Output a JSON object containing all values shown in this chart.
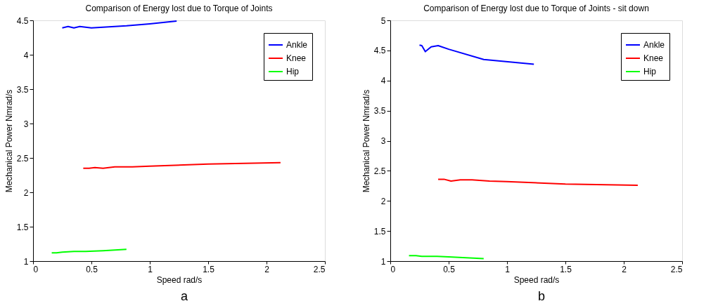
{
  "chart_data": [
    {
      "type": "line",
      "title": "Comparison of Energy lost due to Torque of Joints",
      "xlabel": "Speed rad/s",
      "ylabel": "Mechanical Power Nmrad/s",
      "annotations": [
        "a"
      ],
      "xlim": [
        0,
        2.5
      ],
      "xticks": [
        0,
        0.5,
        1,
        1.5,
        2,
        2.5
      ],
      "ylim": [
        1,
        4.5
      ],
      "yticks": [
        1,
        1.5,
        2,
        2.5,
        3,
        3.5,
        4,
        4.5
      ],
      "legend": "top right",
      "grid": false,
      "marker": "none",
      "line_style": "solid",
      "series": [
        {
          "name": "Ankle",
          "color": "#0000ff",
          "x": [
            0.25,
            0.3,
            0.35,
            0.4,
            0.5,
            0.6,
            0.8,
            1.0,
            1.23
          ],
          "values": [
            4.39,
            4.41,
            4.39,
            4.41,
            4.39,
            4.4,
            4.42,
            4.45,
            4.49
          ]
        },
        {
          "name": "Knee",
          "color": "#ff0000",
          "x": [
            0.43,
            0.48,
            0.53,
            0.6,
            0.7,
            0.85,
            1.0,
            1.5,
            2.12
          ],
          "values": [
            2.35,
            2.35,
            2.36,
            2.35,
            2.37,
            2.37,
            2.38,
            2.41,
            2.43
          ]
        },
        {
          "name": "Hip",
          "color": "#00ff00",
          "x": [
            0.16,
            0.2,
            0.25,
            0.35,
            0.45,
            0.6,
            0.8
          ],
          "values": [
            1.12,
            1.12,
            1.13,
            1.14,
            1.14,
            1.15,
            1.17
          ]
        }
      ]
    },
    {
      "type": "line",
      "title": "Comparison of Energy lost due to Torque of Joints - sit down",
      "xlabel": "Speed rad/s",
      "ylabel": "Mechanical Power Nmrad/s",
      "annotations": [
        "b"
      ],
      "xlim": [
        0,
        2.5
      ],
      "xticks": [
        0,
        0.5,
        1,
        1.5,
        2,
        2.5
      ],
      "ylim": [
        1,
        5
      ],
      "yticks": [
        1,
        1.5,
        2,
        2.5,
        3,
        3.5,
        4,
        4.5,
        5
      ],
      "legend": "top right",
      "grid": false,
      "marker": "none",
      "line_style": "solid",
      "series": [
        {
          "name": "Ankle",
          "color": "#0000ff",
          "x": [
            0.25,
            0.27,
            0.3,
            0.35,
            0.41,
            0.5,
            0.8,
            1.23
          ],
          "values": [
            4.59,
            4.58,
            4.48,
            4.56,
            4.58,
            4.52,
            4.35,
            4.27
          ]
        },
        {
          "name": "Knee",
          "color": "#ff0000",
          "x": [
            0.41,
            0.46,
            0.52,
            0.6,
            0.7,
            0.85,
            1.0,
            1.5,
            2.12
          ],
          "values": [
            2.36,
            2.36,
            2.33,
            2.35,
            2.35,
            2.33,
            2.32,
            2.28,
            2.26
          ]
        },
        {
          "name": "Hip",
          "color": "#00ff00",
          "x": [
            0.16,
            0.22,
            0.27,
            0.4,
            0.5,
            0.8
          ],
          "values": [
            1.09,
            1.09,
            1.08,
            1.08,
            1.07,
            1.04
          ]
        }
      ]
    }
  ]
}
